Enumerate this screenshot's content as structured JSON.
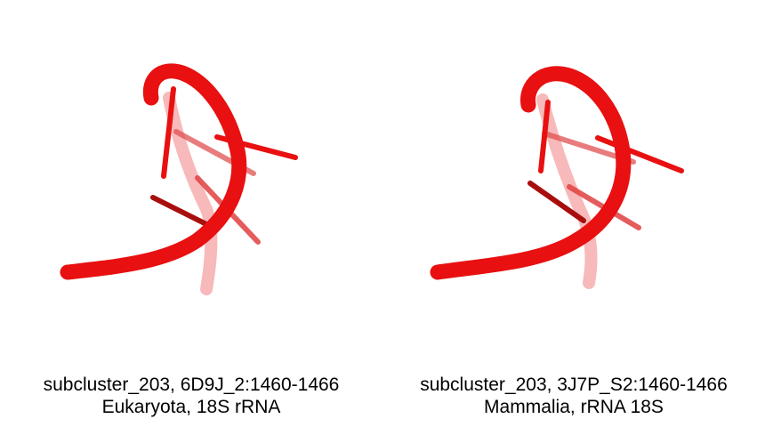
{
  "panels": [
    {
      "title": "subcluster_203, 6D9J_2:1460-1466",
      "subtitle": "Eukaryota, 18S rRNA",
      "color": "#ee1111"
    },
    {
      "title": "subcluster_203, 3J7P_S2:1460-1466",
      "subtitle": "Mammalia, rRNA 18S",
      "color": "#ee1111"
    }
  ]
}
